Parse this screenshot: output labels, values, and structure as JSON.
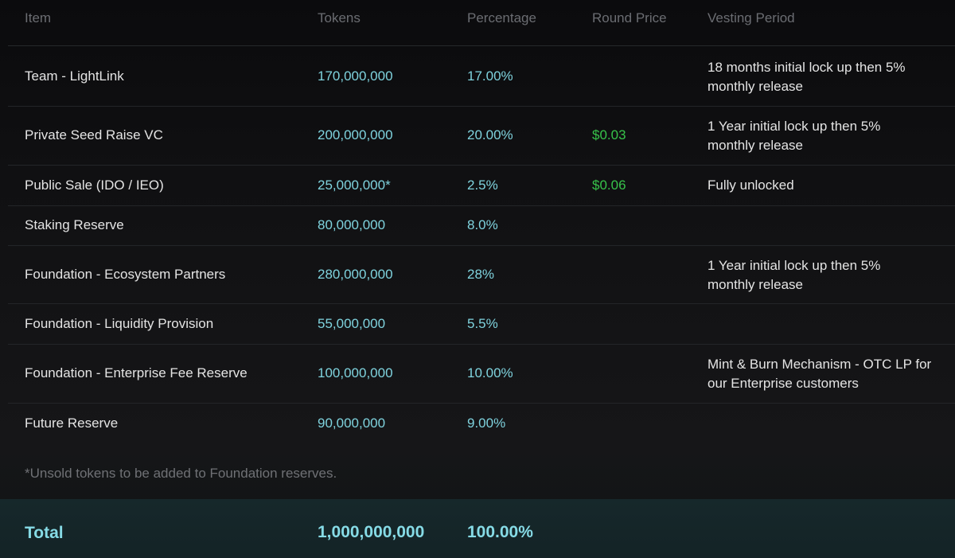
{
  "table": {
    "columns": {
      "item": "Item",
      "tokens": "Tokens",
      "percentage": "Percentage",
      "round_price": "Round Price",
      "vesting_period": "Vesting Period"
    },
    "rows": [
      {
        "item": "Team - LightLink",
        "tokens": "170,000,000",
        "percentage": "17.00%",
        "round_price": "",
        "vesting_period": "18 months initial lock up then 5% monthly release"
      },
      {
        "item": "Private Seed Raise VC",
        "tokens": "200,000,000",
        "percentage": "20.00%",
        "round_price": "$0.03",
        "vesting_period": "1 Year initial lock up then 5% monthly release"
      },
      {
        "item": "Public Sale (IDO / IEO)",
        "tokens": "25,000,000*",
        "percentage": "2.5%",
        "round_price": "$0.06",
        "vesting_period": "Fully unlocked"
      },
      {
        "item": "Staking Reserve",
        "tokens": "80,000,000",
        "percentage": "8.0%",
        "round_price": "",
        "vesting_period": ""
      },
      {
        "item": "Foundation - Ecosystem Partners",
        "tokens": "280,000,000",
        "percentage": "28%",
        "round_price": "",
        "vesting_period": "1 Year initial lock up then 5% monthly release"
      },
      {
        "item": "Foundation - Liquidity Provision",
        "tokens": "55,000,000",
        "percentage": "5.5%",
        "round_price": "",
        "vesting_period": ""
      },
      {
        "item": "Foundation - Enterprise Fee Reserve",
        "tokens": "100,000,000",
        "percentage": "10.00%",
        "round_price": "",
        "vesting_period": "Mint & Burn Mechanism - OTC LP for our Enterprise customers"
      },
      {
        "item": "Future Reserve",
        "tokens": "90,000,000",
        "percentage": "9.00%",
        "round_price": "",
        "vesting_period": ""
      }
    ],
    "footnote": "*Unsold tokens to be added to Foundation reserves.",
    "total": {
      "label": "Total",
      "tokens": "1,000,000,000",
      "percentage": "100.00%"
    }
  },
  "colors": {
    "header_text": "#6b6d72",
    "value_cyan": "#7fd3de",
    "price_green": "#37c24a",
    "total_bar": "#16282b"
  }
}
